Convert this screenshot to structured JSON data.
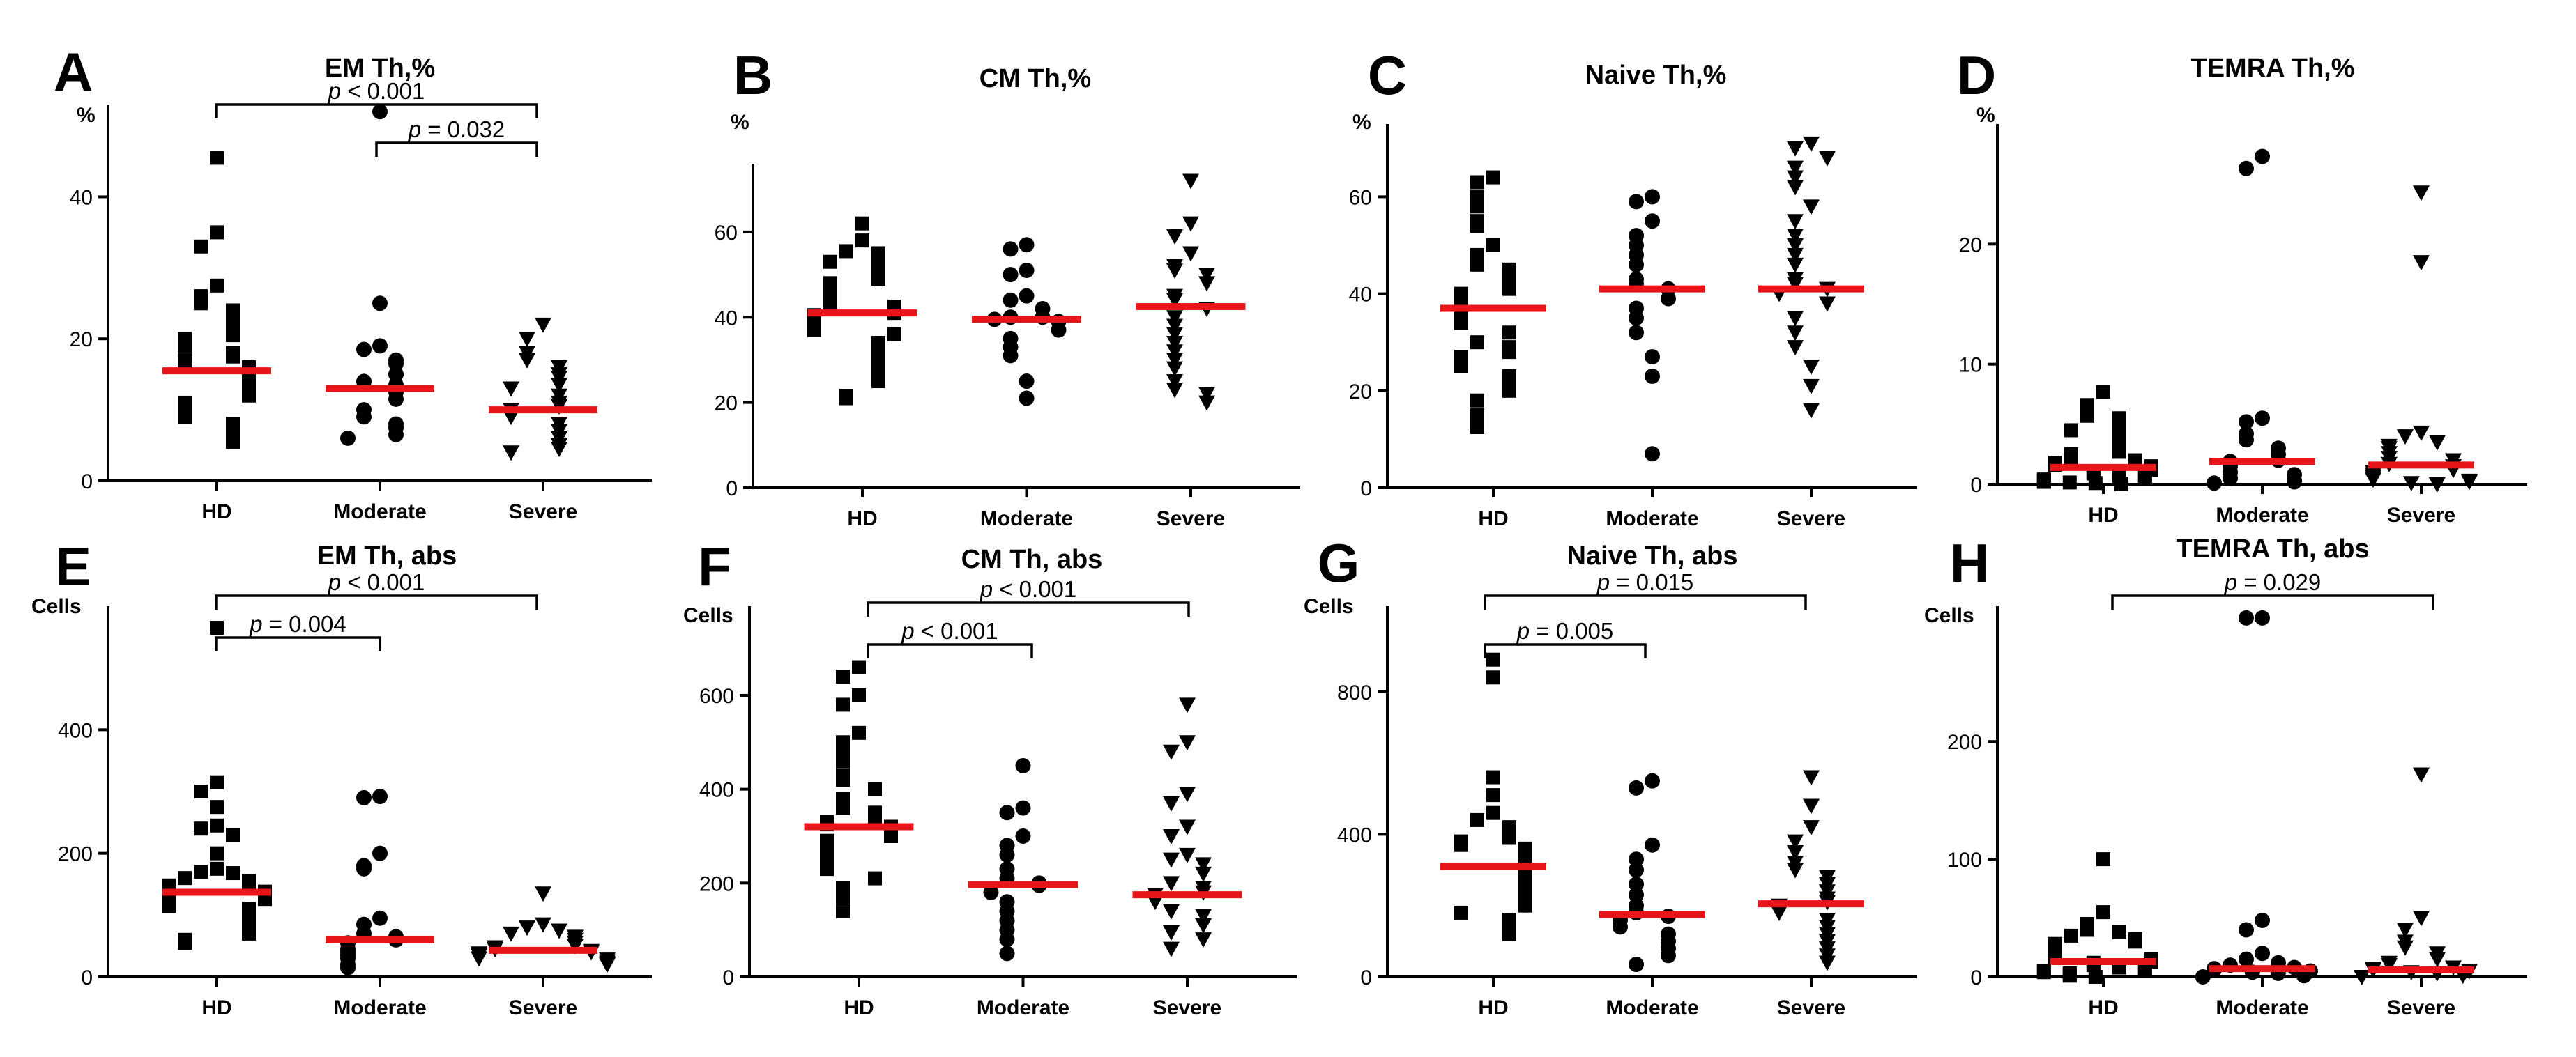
{
  "chart_data": [
    {
      "panel": "A",
      "type": "scatter",
      "title": "EM Th,%",
      "unit": "%",
      "categories": [
        "HD",
        "Moderate",
        "Severe"
      ],
      "ylim": [
        0,
        53
      ],
      "yticks": [
        0,
        20,
        40
      ],
      "series": [
        {
          "name": "HD",
          "marker": "square",
          "median": 15.5,
          "values": [
            45.5,
            35,
            33,
            27.5,
            26,
            25,
            24,
            23,
            22,
            21,
            20.5,
            20,
            19,
            18,
            17.5,
            17,
            16.5,
            16,
            15.5,
            15,
            14.5,
            14,
            13.5,
            13,
            12.5,
            12,
            11,
            10.5,
            10,
            9,
            8,
            7.5,
            6.5,
            5.5
          ]
        },
        {
          "name": "Moderate",
          "marker": "circle",
          "median": 13,
          "values": [
            52,
            25,
            19,
            18.5,
            17,
            16.5,
            15,
            14,
            13.5,
            12.5,
            11.5,
            10,
            9,
            8,
            7.5,
            6.5,
            6
          ]
        },
        {
          "name": "Severe",
          "marker": "triangle-down",
          "median": 10,
          "values": [
            22,
            20,
            18,
            17,
            16,
            15,
            14.5,
            13.5,
            13,
            12,
            11,
            10.5,
            10,
            9,
            8,
            7,
            6,
            5,
            4.5,
            4
          ]
        }
      ],
      "comparisons": [
        {
          "from": "HD",
          "to": "Severe",
          "label_pre": "p",
          "label_post": " < 0.001"
        },
        {
          "from": "Moderate",
          "to": "Severe",
          "label_pre": "p",
          "label_post": " = 0.032"
        }
      ]
    },
    {
      "panel": "B",
      "type": "scatter",
      "title": "CM Th,%",
      "unit": "%",
      "categories": [
        "HD",
        "Moderate",
        "Severe"
      ],
      "ylim": [
        0,
        76
      ],
      "yticks": [
        0,
        20,
        40,
        60
      ],
      "series": [
        {
          "name": "HD",
          "marker": "square",
          "median": 41,
          "values": [
            62,
            58,
            55.5,
            55,
            54,
            53,
            51,
            50,
            49,
            48,
            47,
            46,
            45,
            44,
            43,
            42.5,
            42,
            41,
            40.5,
            40,
            39,
            38.5,
            38,
            37,
            36,
            34,
            33,
            31,
            30,
            28,
            27,
            25,
            21.5,
            21
          ]
        },
        {
          "name": "Moderate",
          "marker": "circle",
          "median": 39.5,
          "values": [
            57,
            56,
            51,
            50,
            45,
            44,
            42,
            40,
            40,
            39.5,
            39,
            37,
            35,
            33,
            31,
            25,
            21
          ]
        },
        {
          "name": "Severe",
          "marker": "triangle-down",
          "median": 42.5,
          "values": [
            72,
            62,
            59,
            55,
            52,
            51,
            50,
            48,
            45,
            44,
            42,
            40,
            38,
            36,
            34,
            32,
            30,
            28,
            25,
            23,
            22,
            20
          ]
        }
      ],
      "comparisons": []
    },
    {
      "panel": "C",
      "type": "scatter",
      "title": "Naive Th,%",
      "unit": "%",
      "categories": [
        "HD",
        "Moderate",
        "Severe"
      ],
      "ylim": [
        0,
        75
      ],
      "yticks": [
        0,
        20,
        40,
        60
      ],
      "series": [
        {
          "name": "HD",
          "marker": "square",
          "median": 37,
          "values": [
            64,
            63,
            60,
            58,
            55,
            54,
            50,
            48,
            46,
            45,
            43,
            42,
            41,
            40,
            39,
            38,
            37,
            36,
            35,
            34,
            32,
            30,
            29,
            28,
            27,
            26,
            25,
            23,
            22,
            20,
            18,
            15,
            12.5
          ]
        },
        {
          "name": "Moderate",
          "marker": "circle",
          "median": 41,
          "values": [
            60,
            59,
            55,
            52,
            50,
            48,
            46,
            43,
            42,
            41,
            39,
            37,
            35,
            32,
            27,
            23,
            7
          ]
        },
        {
          "name": "Severe",
          "marker": "triangle-down",
          "median": 41,
          "values": [
            71,
            70,
            68,
            66,
            64,
            62,
            58,
            55,
            52,
            50,
            48,
            46,
            43,
            42,
            41,
            40,
            38,
            35,
            32,
            29,
            25,
            21,
            16
          ]
        }
      ],
      "comparisons": []
    },
    {
      "panel": "D",
      "type": "scatter",
      "title": "TEMRA Th,%",
      "unit": "%",
      "categories": [
        "HD",
        "Moderate",
        "Severe"
      ],
      "ylim": [
        0,
        30
      ],
      "yticks": [
        0,
        10,
        20
      ],
      "series": [
        {
          "name": "HD",
          "marker": "square",
          "median": 1.4,
          "values": [
            7.7,
            6.6,
            5.7,
            5.5,
            5,
            4.5,
            4,
            3.5,
            3,
            2.7,
            2.5,
            2.2,
            2,
            1.8,
            1.6,
            1.5,
            1.3,
            1.2,
            1,
            0.9,
            0.8,
            0.7,
            0.6,
            0.5,
            0.4,
            0.3,
            0.2,
            0.15,
            0.1,
            0.05,
            0
          ]
        },
        {
          "name": "Moderate",
          "marker": "circle",
          "median": 1.9,
          "values": [
            27.3,
            26.3,
            5.5,
            5.2,
            4.2,
            3.7,
            3,
            2.5,
            2,
            1.9,
            1.5,
            1,
            0.8,
            0.5,
            0.3,
            0.2,
            0.1
          ]
        },
        {
          "name": "Severe",
          "marker": "triangle-down",
          "median": 1.6,
          "values": [
            24.3,
            18.5,
            4.3,
            4,
            3.5,
            3.2,
            3,
            2.6,
            2.2,
            2,
            1.7,
            1.5,
            1.2,
            1,
            0.8,
            0.6,
            0.4,
            0.3,
            0.2,
            0.1,
            0
          ]
        }
      ],
      "comparisons": []
    },
    {
      "panel": "E",
      "type": "scatter",
      "title": "EM Th, abs",
      "unit": "Cells",
      "categories": [
        "HD",
        "Moderate",
        "Severe"
      ],
      "ylim": [
        0,
        600
      ],
      "yticks": [
        0,
        200,
        400
      ],
      "series": [
        {
          "name": "HD",
          "marker": "square",
          "median": 137,
          "values": [
            565,
            315,
            300,
            275,
            245,
            240,
            230,
            200,
            175,
            170,
            168,
            160,
            155,
            150,
            148,
            145,
            140,
            138,
            135,
            130,
            125,
            120,
            115,
            110,
            105,
            100,
            95,
            90,
            85,
            80,
            75,
            70,
            60,
            55
          ]
        },
        {
          "name": "Moderate",
          "marker": "circle",
          "median": 60,
          "values": [
            292,
            290,
            200,
            180,
            175,
            95,
            85,
            70,
            65,
            60,
            55,
            45,
            40,
            35,
            30,
            20,
            15
          ]
        },
        {
          "name": "Severe",
          "marker": "triangle-down",
          "median": 43,
          "values": [
            135,
            85,
            80,
            75,
            70,
            65,
            60,
            55,
            50,
            48,
            45,
            42,
            40,
            38,
            35,
            30,
            28,
            25,
            22,
            20
          ]
        }
      ],
      "comparisons": [
        {
          "from": "HD",
          "to": "Severe",
          "label_pre": "p",
          "label_post": " < 0.001"
        },
        {
          "from": "HD",
          "to": "Moderate",
          "label_pre": "p",
          "label_post": " = 0.004"
        }
      ]
    },
    {
      "panel": "F",
      "type": "scatter",
      "title": "CM Th, abs",
      "unit": "Cells",
      "categories": [
        "HD",
        "Moderate",
        "Severe"
      ],
      "ylim": [
        0,
        790
      ],
      "yticks": [
        0,
        200,
        400,
        600
      ],
      "series": [
        {
          "name": "HD",
          "marker": "square",
          "median": 320,
          "values": [
            660,
            640,
            600,
            580,
            520,
            500,
            480,
            460,
            430,
            420,
            400,
            380,
            360,
            350,
            340,
            330,
            325,
            320,
            310,
            300,
            290,
            280,
            270,
            260,
            250,
            240,
            230,
            210,
            190,
            170,
            140
          ]
        },
        {
          "name": "Moderate",
          "marker": "circle",
          "median": 197,
          "values": [
            450,
            360,
            350,
            300,
            280,
            260,
            230,
            210,
            200,
            195,
            180,
            160,
            140,
            120,
            100,
            80,
            50
          ]
        },
        {
          "name": "Severe",
          "marker": "triangle-down",
          "median": 175,
          "values": [
            580,
            500,
            480,
            390,
            370,
            320,
            300,
            260,
            250,
            240,
            220,
            200,
            190,
            180,
            175,
            160,
            140,
            130,
            110,
            95,
            80,
            60
          ]
        }
      ],
      "comparisons": [
        {
          "from": "HD",
          "to": "Severe",
          "label_pre": "p",
          "label_post": " < 0.001"
        },
        {
          "from": "HD",
          "to": "Moderate",
          "label_pre": "p",
          "label_post": " < 0.001"
        }
      ]
    },
    {
      "panel": "G",
      "type": "scatter",
      "title": "Naive Th, abs",
      "unit": "Cells",
      "categories": [
        "HD",
        "Moderate",
        "Severe"
      ],
      "ylim": [
        0,
        1040
      ],
      "yticks": [
        0,
        400,
        800
      ],
      "series": [
        {
          "name": "HD",
          "marker": "square",
          "median": 310,
          "values": [
            890,
            840,
            560,
            510,
            460,
            440,
            420,
            400,
            390,
            380,
            370,
            360,
            350,
            340,
            330,
            320,
            310,
            300,
            290,
            280,
            270,
            260,
            250,
            240,
            230,
            220,
            210,
            200,
            180,
            160,
            140,
            120
          ]
        },
        {
          "name": "Moderate",
          "marker": "circle",
          "median": 175,
          "values": [
            550,
            530,
            370,
            330,
            300,
            260,
            230,
            200,
            180,
            170,
            160,
            140,
            120,
            100,
            80,
            60,
            35
          ]
        },
        {
          "name": "Severe",
          "marker": "triangle-down",
          "median": 205,
          "values": [
            560,
            480,
            420,
            380,
            350,
            320,
            300,
            280,
            260,
            240,
            220,
            210,
            200,
            180,
            160,
            140,
            120,
            100,
            80,
            60,
            40
          ]
        }
      ],
      "comparisons": [
        {
          "from": "HD",
          "to": "Severe",
          "label_pre": "p",
          "label_post": " = 0.015"
        },
        {
          "from": "HD",
          "to": "Moderate",
          "label_pre": "p",
          "label_post": " = 0.005"
        }
      ]
    },
    {
      "panel": "H",
      "type": "scatter",
      "title": "TEMRA Th, abs",
      "unit": "Cells",
      "categories": [
        "HD",
        "Moderate",
        "Severe"
      ],
      "ylim": [
        0,
        315
      ],
      "yticks": [
        0,
        100,
        200
      ],
      "series": [
        {
          "name": "HD",
          "marker": "square",
          "median": 13,
          "values": [
            100,
            55,
            45,
            40,
            38,
            35,
            32,
            30,
            28,
            25,
            22,
            20,
            18,
            16,
            15,
            13,
            12,
            10,
            9,
            8,
            7,
            6,
            5,
            4,
            3,
            2,
            1,
            0
          ]
        },
        {
          "name": "Moderate",
          "marker": "circle",
          "median": 7,
          "values": [
            305,
            305,
            48,
            40,
            20,
            15,
            12,
            10,
            8,
            7,
            6,
            5,
            4,
            3,
            2,
            1,
            0
          ]
        },
        {
          "name": "Severe",
          "marker": "triangle-down",
          "median": 6,
          "values": [
            172,
            50,
            40,
            30,
            25,
            20,
            15,
            12,
            10,
            8,
            7,
            6,
            5,
            4,
            3,
            2,
            1,
            0
          ]
        }
      ],
      "comparisons": [
        {
          "from": "HD",
          "to": "Severe",
          "label_pre": "p",
          "label_post": " = 0.029"
        }
      ]
    }
  ]
}
